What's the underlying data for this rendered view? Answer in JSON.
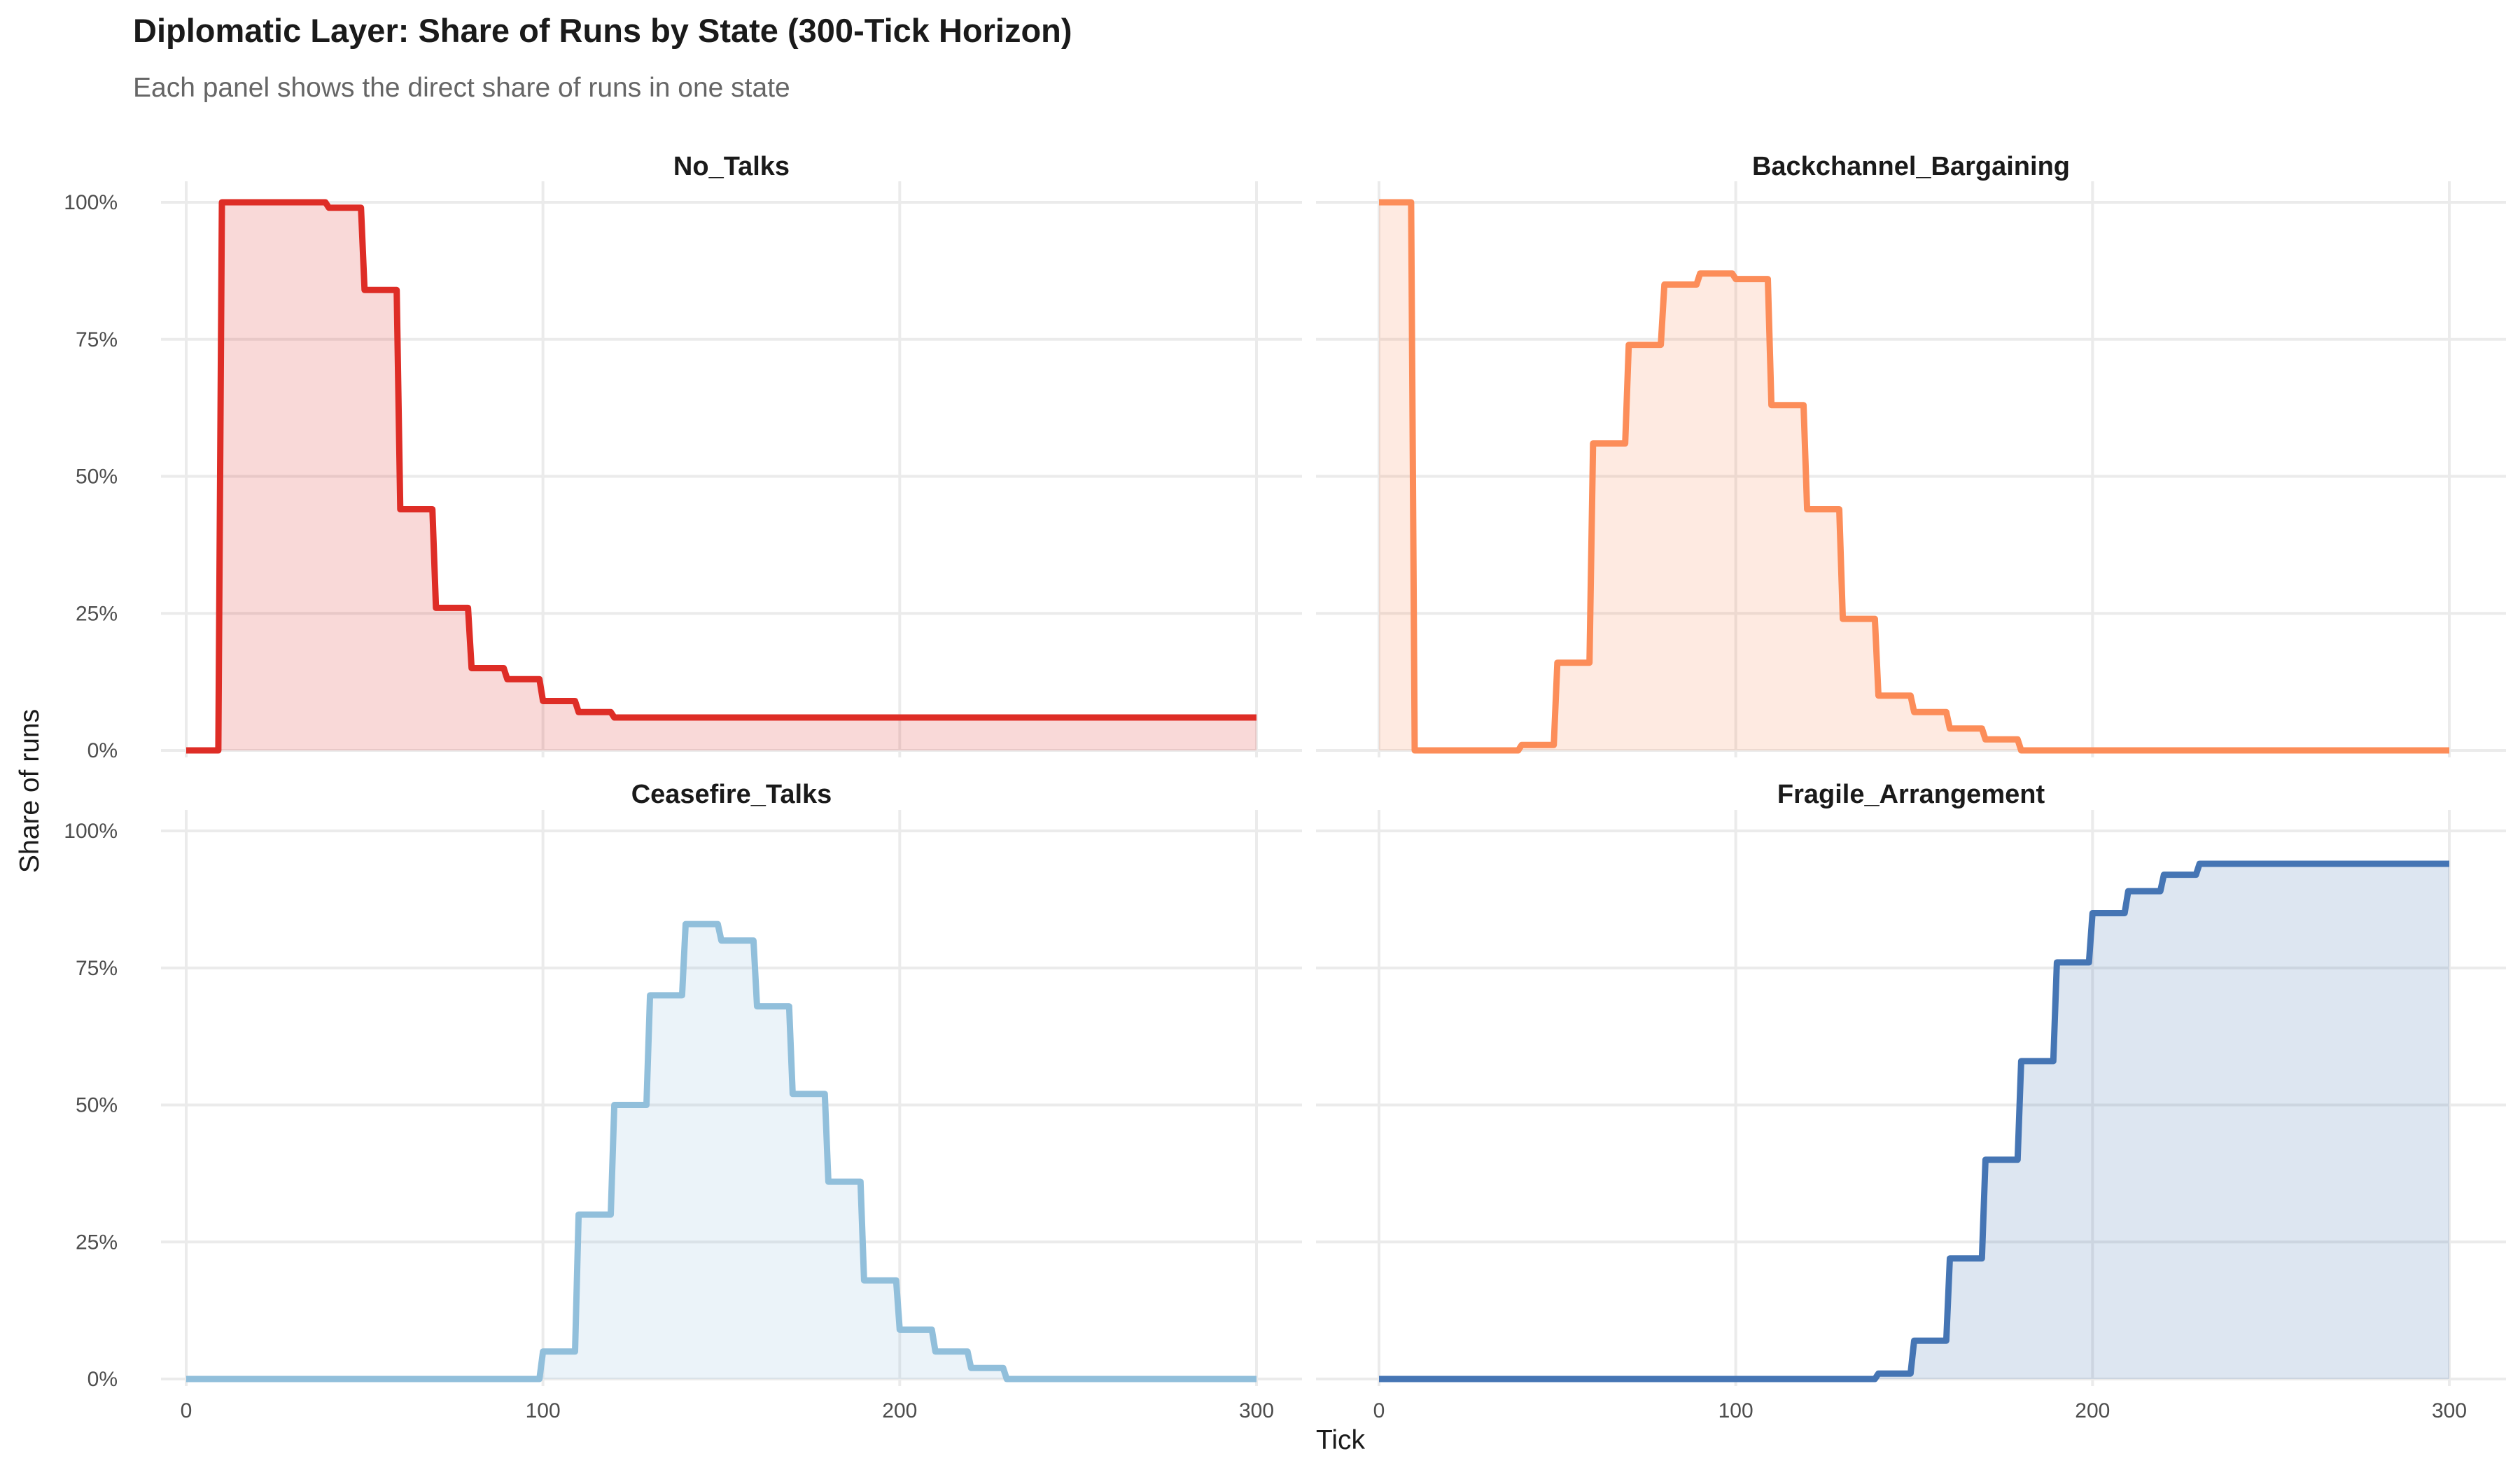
{
  "chart_data": {
    "type": "area",
    "title": "Diplomatic Layer: Share of Runs by State (300-Tick Horizon)",
    "subtitle": "Each panel shows the direct share of runs in one state",
    "xlabel": "Tick",
    "ylabel": "Share of runs",
    "xlim": [
      0,
      300
    ],
    "ylim": [
      0,
      100
    ],
    "x_ticks": [
      0,
      100,
      200,
      300
    ],
    "x_tick_labels": [
      "0",
      "100",
      "200",
      "300"
    ],
    "y_ticks": [
      0,
      25,
      50,
      75,
      100
    ],
    "y_tick_labels": [
      "0%",
      "25%",
      "50%",
      "75%",
      "100%"
    ],
    "grid": true,
    "x": [
      0,
      10,
      20,
      30,
      40,
      50,
      60,
      70,
      80,
      90,
      100,
      110,
      120,
      130,
      140,
      150,
      160,
      170,
      180,
      190,
      200,
      210,
      220,
      230,
      240,
      250,
      260,
      270,
      280,
      290,
      300
    ],
    "series": [
      {
        "name": "No_Talks",
        "color": "#DE2D26",
        "values": [
          0,
          100,
          100,
          100,
          99,
          84,
          44,
          26,
          15,
          13,
          9,
          7,
          6,
          6,
          6,
          6,
          6,
          6,
          6,
          6,
          6,
          6,
          6,
          6,
          6,
          6,
          6,
          6,
          6,
          6,
          6
        ]
      },
      {
        "name": "Backchannel_Bargaining",
        "color": "#FC8D59",
        "values": [
          100,
          0,
          0,
          0,
          1,
          16,
          56,
          74,
          85,
          87,
          86,
          63,
          44,
          24,
          10,
          7,
          4,
          2,
          0,
          0,
          0,
          0,
          0,
          0,
          0,
          0,
          0,
          0,
          0,
          0,
          0
        ]
      },
      {
        "name": "Ceasefire_Talks",
        "color": "#91BFDB",
        "values": [
          0,
          0,
          0,
          0,
          0,
          0,
          0,
          0,
          0,
          0,
          5,
          30,
          50,
          70,
          83,
          80,
          68,
          52,
          36,
          18,
          9,
          5,
          2,
          0,
          0,
          0,
          0,
          0,
          0,
          0,
          0
        ]
      },
      {
        "name": "Fragile_Arrangement",
        "color": "#4575B4",
        "values": [
          0,
          0,
          0,
          0,
          0,
          0,
          0,
          0,
          0,
          0,
          0,
          0,
          0,
          0,
          1,
          7,
          22,
          40,
          58,
          76,
          85,
          89,
          92,
          94,
          94,
          94,
          94,
          94,
          94,
          94,
          94
        ]
      }
    ]
  }
}
